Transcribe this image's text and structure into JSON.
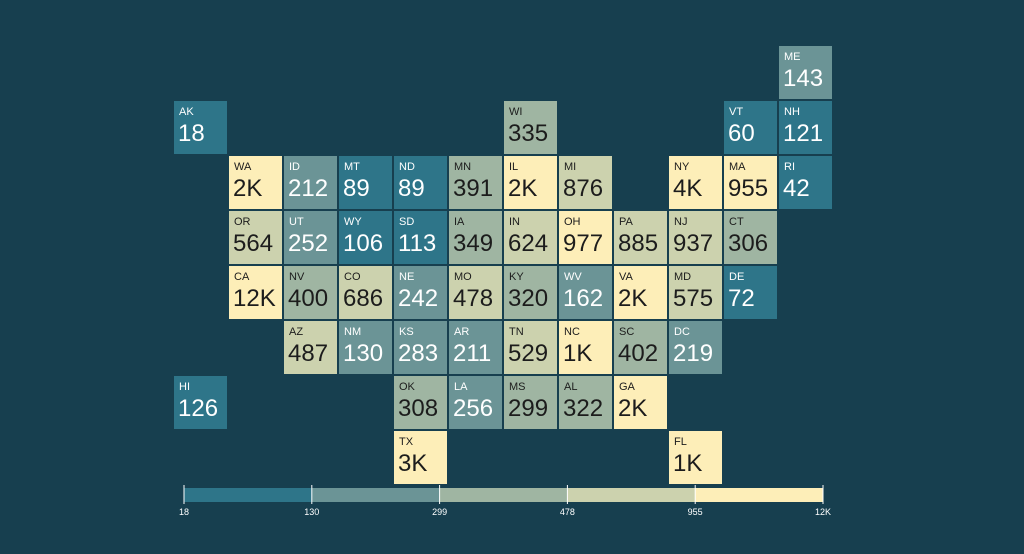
{
  "chart_data": {
    "type": "tile-grid-map",
    "states": [
      {
        "abbr": "ME",
        "label": "143",
        "value": 143,
        "col": 11,
        "row": 0
      },
      {
        "abbr": "AK",
        "label": "18",
        "value": 18,
        "col": 0,
        "row": 1
      },
      {
        "abbr": "WI",
        "label": "335",
        "value": 335,
        "col": 6,
        "row": 1
      },
      {
        "abbr": "VT",
        "label": "60",
        "value": 60,
        "col": 10,
        "row": 1
      },
      {
        "abbr": "NH",
        "label": "121",
        "value": 121,
        "col": 11,
        "row": 1
      },
      {
        "abbr": "WA",
        "label": "2K",
        "value": 2000,
        "col": 1,
        "row": 2
      },
      {
        "abbr": "ID",
        "label": "212",
        "value": 212,
        "col": 2,
        "row": 2
      },
      {
        "abbr": "MT",
        "label": "89",
        "value": 89,
        "col": 3,
        "row": 2
      },
      {
        "abbr": "ND",
        "label": "89",
        "value": 89,
        "col": 4,
        "row": 2
      },
      {
        "abbr": "MN",
        "label": "391",
        "value": 391,
        "col": 5,
        "row": 2
      },
      {
        "abbr": "IL",
        "label": "2K",
        "value": 2000,
        "col": 6,
        "row": 2
      },
      {
        "abbr": "MI",
        "label": "876",
        "value": 876,
        "col": 7,
        "row": 2
      },
      {
        "abbr": "NY",
        "label": "4K",
        "value": 4000,
        "col": 9,
        "row": 2
      },
      {
        "abbr": "MA",
        "label": "955",
        "value": 955,
        "col": 10,
        "row": 2
      },
      {
        "abbr": "RI",
        "label": "42",
        "value": 42,
        "col": 11,
        "row": 2
      },
      {
        "abbr": "OR",
        "label": "564",
        "value": 564,
        "col": 1,
        "row": 3
      },
      {
        "abbr": "UT",
        "label": "252",
        "value": 252,
        "col": 2,
        "row": 3
      },
      {
        "abbr": "WY",
        "label": "106",
        "value": 106,
        "col": 3,
        "row": 3
      },
      {
        "abbr": "SD",
        "label": "113",
        "value": 113,
        "col": 4,
        "row": 3
      },
      {
        "abbr": "IA",
        "label": "349",
        "value": 349,
        "col": 5,
        "row": 3
      },
      {
        "abbr": "IN",
        "label": "624",
        "value": 624,
        "col": 6,
        "row": 3
      },
      {
        "abbr": "OH",
        "label": "977",
        "value": 977,
        "col": 7,
        "row": 3
      },
      {
        "abbr": "PA",
        "label": "885",
        "value": 885,
        "col": 8,
        "row": 3
      },
      {
        "abbr": "NJ",
        "label": "937",
        "value": 937,
        "col": 9,
        "row": 3
      },
      {
        "abbr": "CT",
        "label": "306",
        "value": 306,
        "col": 10,
        "row": 3
      },
      {
        "abbr": "CA",
        "label": "12K",
        "value": 12000,
        "col": 1,
        "row": 4
      },
      {
        "abbr": "NV",
        "label": "400",
        "value": 400,
        "col": 2,
        "row": 4
      },
      {
        "abbr": "CO",
        "label": "686",
        "value": 686,
        "col": 3,
        "row": 4
      },
      {
        "abbr": "NE",
        "label": "242",
        "value": 242,
        "col": 4,
        "row": 4
      },
      {
        "abbr": "MO",
        "label": "478",
        "value": 478,
        "col": 5,
        "row": 4
      },
      {
        "abbr": "KY",
        "label": "320",
        "value": 320,
        "col": 6,
        "row": 4
      },
      {
        "abbr": "WV",
        "label": "162",
        "value": 162,
        "col": 7,
        "row": 4
      },
      {
        "abbr": "VA",
        "label": "2K",
        "value": 2000,
        "col": 8,
        "row": 4
      },
      {
        "abbr": "MD",
        "label": "575",
        "value": 575,
        "col": 9,
        "row": 4
      },
      {
        "abbr": "DE",
        "label": "72",
        "value": 72,
        "col": 10,
        "row": 4
      },
      {
        "abbr": "AZ",
        "label": "487",
        "value": 487,
        "col": 2,
        "row": 5
      },
      {
        "abbr": "NM",
        "label": "130",
        "value": 130,
        "col": 3,
        "row": 5
      },
      {
        "abbr": "KS",
        "label": "283",
        "value": 283,
        "col": 4,
        "row": 5
      },
      {
        "abbr": "AR",
        "label": "211",
        "value": 211,
        "col": 5,
        "row": 5
      },
      {
        "abbr": "TN",
        "label": "529",
        "value": 529,
        "col": 6,
        "row": 5
      },
      {
        "abbr": "NC",
        "label": "1K",
        "value": 1000,
        "col": 7,
        "row": 5
      },
      {
        "abbr": "SC",
        "label": "402",
        "value": 402,
        "col": 8,
        "row": 5
      },
      {
        "abbr": "DC",
        "label": "219",
        "value": 219,
        "col": 9,
        "row": 5
      },
      {
        "abbr": "HI",
        "label": "126",
        "value": 126,
        "col": 0,
        "row": 6
      },
      {
        "abbr": "OK",
        "label": "308",
        "value": 308,
        "col": 4,
        "row": 6
      },
      {
        "abbr": "LA",
        "label": "256",
        "value": 256,
        "col": 5,
        "row": 6
      },
      {
        "abbr": "MS",
        "label": "299",
        "value": 299,
        "col": 6,
        "row": 6
      },
      {
        "abbr": "AL",
        "label": "322",
        "value": 322,
        "col": 7,
        "row": 6
      },
      {
        "abbr": "GA",
        "label": "2K",
        "value": 2000,
        "col": 8,
        "row": 6
      },
      {
        "abbr": "TX",
        "label": "3K",
        "value": 3000,
        "col": 4,
        "row": 7
      },
      {
        "abbr": "FL",
        "label": "1K",
        "value": 1000,
        "col": 9,
        "row": 7
      }
    ],
    "legend": {
      "ticks": [
        "18",
        "130",
        "299",
        "478",
        "955",
        "12K"
      ],
      "thresholds": [
        18,
        130,
        299,
        478,
        955,
        12000
      ],
      "colors": [
        "#2e7589",
        "#6b9496",
        "#9fb5a2",
        "#ccd2ae",
        "#fdeeb8"
      ]
    }
  }
}
